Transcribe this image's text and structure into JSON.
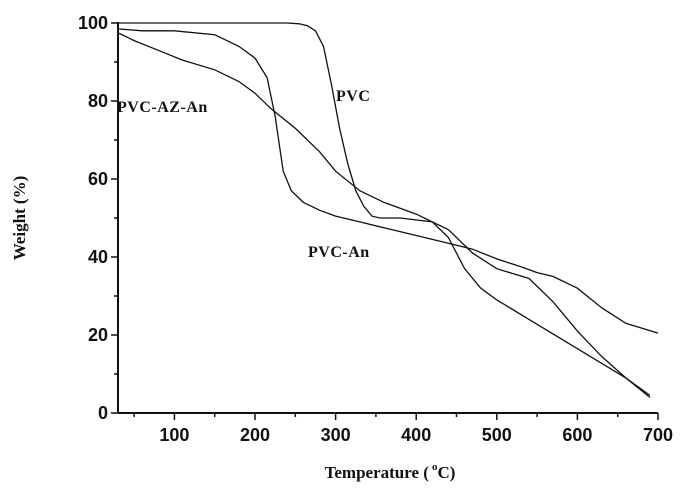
{
  "chart_data": {
    "type": "line",
    "xlabel": "Temperature (",
    "xlabel_sup": "o",
    "xlabel_unit": "C)",
    "ylabel": "Weight (%)",
    "xlim": [
      30,
      700
    ],
    "ylim": [
      0,
      100
    ],
    "x_ticks": [
      100,
      200,
      300,
      400,
      500,
      600,
      700
    ],
    "y_ticks": [
      0,
      20,
      40,
      60,
      80,
      100
    ],
    "x_minor_step": 50,
    "y_minor_step": 10,
    "grid": false,
    "series": [
      {
        "name": "PVC",
        "x": [
          30,
          100,
          200,
          240,
          255,
          265,
          275,
          285,
          295,
          305,
          315,
          325,
          335,
          345,
          355,
          380,
          420,
          440,
          470,
          500,
          540,
          570,
          600,
          630,
          660,
          690
        ],
        "y": [
          100,
          100,
          100,
          100,
          99.8,
          99.3,
          98,
          94,
          84,
          73,
          64,
          57,
          53,
          50.5,
          50,
          50,
          49,
          47,
          41,
          37,
          34.5,
          28.5,
          21,
          14.5,
          9,
          4
        ]
      },
      {
        "name": "PVC-AZ-An",
        "x": [
          30,
          60,
          100,
          150,
          180,
          200,
          215,
          225,
          235,
          245,
          260,
          280,
          300,
          330,
          360,
          400,
          440,
          470,
          500,
          530,
          550,
          570,
          600,
          630,
          660,
          700
        ],
        "y": [
          98.5,
          98,
          98,
          97,
          94,
          91,
          86,
          76,
          62,
          57,
          54,
          52,
          50.5,
          49,
          47.5,
          45.5,
          43.5,
          42,
          39.5,
          37.5,
          36,
          35,
          32,
          27,
          23,
          20.5
        ]
      },
      {
        "name": "PVC-An",
        "x": [
          30,
          50,
          80,
          110,
          150,
          180,
          200,
          220,
          250,
          280,
          300,
          330,
          360,
          400,
          420,
          440,
          460,
          480,
          500,
          540,
          580,
          620,
          660,
          690
        ],
        "y": [
          97.5,
          95.5,
          93,
          90.5,
          88,
          85,
          82,
          78,
          73,
          67,
          62,
          57,
          54,
          51,
          49,
          45,
          37,
          32,
          29,
          24,
          19,
          14,
          9,
          4.5
        ]
      }
    ],
    "annotations": [
      {
        "text": "PVC",
        "series": "PVC"
      },
      {
        "text": "PVC-AZ-An",
        "series": "PVC-AZ-An"
      },
      {
        "text": "PVC-An",
        "series": "PVC-An"
      }
    ]
  }
}
